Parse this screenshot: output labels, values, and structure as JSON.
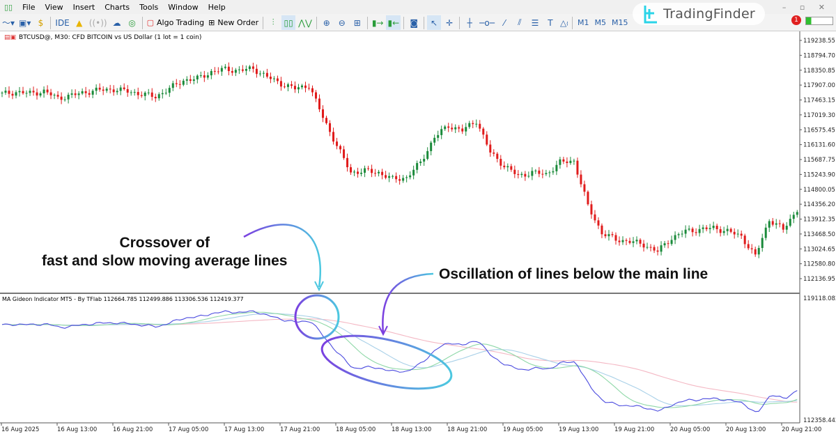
{
  "menu": [
    "File",
    "View",
    "Insert",
    "Charts",
    "Tools",
    "Window",
    "Help"
  ],
  "toolbar": {
    "ide": "IDE",
    "algo_trading": "Algo Trading",
    "new_order": "New Order",
    "timeframes": [
      "M1",
      "M5",
      "M15"
    ],
    "notifications": "1"
  },
  "brand": "TradingFinder",
  "chart": {
    "title": "BTCUSD@, M30:  CFD BITCOIN vs US Dollar (1 lot = 1 coin)",
    "indicator_label": "MA Gideon Indicator MT5 - By TFlab 112664.785 112499.886 113306.536 112419.377"
  },
  "annotations": {
    "crossover": "Crossover of\nfast and slow moving average lines",
    "oscillation": "Oscillation of lines below the main line"
  },
  "colors": {
    "bull": "#1a8a3a",
    "bear": "#e01b1b",
    "fast": "#4a4adf",
    "mid": "#8fd8a8",
    "mid2": "#a8d0e8",
    "slow": "#f4b8c4",
    "annot_start": "#7b3fe0",
    "annot_end": "#4cc8e0"
  },
  "chart_data": {
    "type": "candlestick",
    "symbol": "BTCUSD@",
    "timeframe": "M30",
    "price_ticks": [
      "119238.55",
      "118794.70",
      "118350.85",
      "117907.00",
      "117463.15",
      "117019.30",
      "116575.45",
      "116131.60",
      "115687.75",
      "115243.90",
      "114800.05",
      "114356.20",
      "113912.35",
      "113468.50",
      "113024.65",
      "112580.80",
      "112136.95"
    ],
    "indicator_ticks": [
      "119118.082",
      "112358.442"
    ],
    "time_ticks": [
      "16 Aug 2025",
      "16 Aug 13:00",
      "16 Aug 21:00",
      "17 Aug 05:00",
      "17 Aug 13:00",
      "17 Aug 21:00",
      "18 Aug 05:00",
      "18 Aug 13:00",
      "18 Aug 21:00",
      "19 Aug 05:00",
      "19 Aug 13:00",
      "19 Aug 21:00",
      "20 Aug 05:00",
      "20 Aug 13:00",
      "20 Aug 21:00"
    ],
    "ylim": [
      112136.95,
      119238.55
    ],
    "indicator_ylim": [
      112358.442,
      119118.082
    ],
    "approx_closes": [
      117640,
      117700,
      117660,
      117720,
      117520,
      117600,
      117700,
      117760,
      117780,
      117720,
      117640,
      117560,
      117800,
      118050,
      118100,
      118300,
      118380,
      118340,
      118400,
      118150,
      117950,
      117800,
      117900,
      116950,
      116100,
      115300,
      115350,
      115300,
      115100,
      115150,
      115600,
      116350,
      116700,
      116550,
      116850,
      115900,
      115500,
      115200,
      115300,
      115250,
      115600,
      115650,
      114300,
      113500,
      113300,
      113250,
      113150,
      112950,
      113350,
      113550,
      113600,
      113650,
      113550,
      113400,
      112800,
      113900,
      113600,
      114200
    ]
  }
}
